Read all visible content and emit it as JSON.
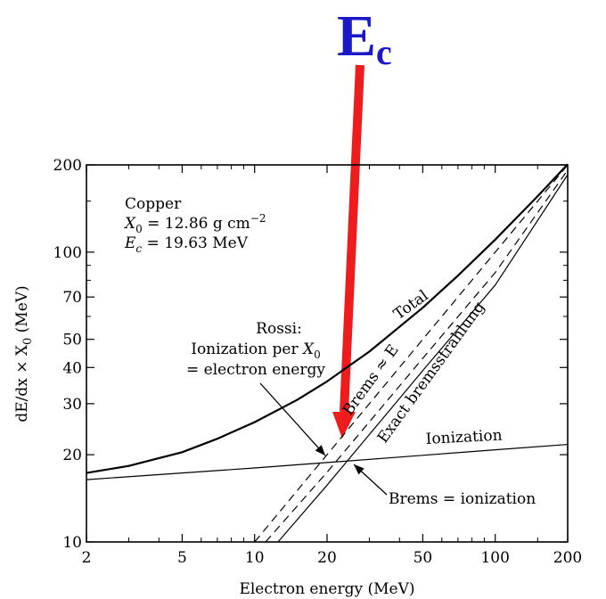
{
  "chart_data": {
    "type": "line",
    "title": "E",
    "title_subscript": "c",
    "title_color": "#1a18c8",
    "arrow_color": "#ee1c1c",
    "xlabel": "Electron energy (MeV)",
    "ylabel": "dE/dx × X",
    "ylabel_subscript": "0",
    "ylabel_suffix": " (MeV)",
    "x_scale": "log",
    "y_scale": "log",
    "xlim": [
      2,
      200
    ],
    "ylim": [
      10,
      200
    ],
    "x_ticks": [
      2,
      5,
      10,
      20,
      50,
      100,
      200
    ],
    "x_tick_labels": [
      "2",
      "5",
      "10",
      "20",
      "50",
      "100",
      "200"
    ],
    "y_ticks": [
      10,
      20,
      30,
      40,
      50,
      70,
      100,
      200
    ],
    "y_tick_labels": [
      "10",
      "20",
      "30",
      "40",
      "50",
      "70",
      "100",
      "200"
    ],
    "grid": false,
    "info_box": {
      "material": "Copper",
      "x0_symbol": "X",
      "x0_subscript": "0",
      "x0_value": " = 12.86 g cm",
      "x0_exponent": "−2",
      "ec_symbol": "E",
      "ec_subscript": "c",
      "ec_value": " = 19.63 MeV"
    },
    "series": [
      {
        "name": "Total",
        "style": "solid-thick",
        "x": [
          2,
          3,
          5,
          7,
          10,
          15,
          20,
          30,
          50,
          70,
          100,
          150,
          200
        ],
        "y": [
          17.3,
          18.3,
          20.4,
          22.7,
          25.9,
          30.9,
          35.8,
          45.4,
          64.3,
          83.0,
          110.5,
          156.0,
          201.0
        ]
      },
      {
        "name": "Ionization",
        "style": "solid-thin",
        "x": [
          2,
          5,
          10,
          20,
          50,
          100,
          200
        ],
        "y": [
          16.4,
          17.3,
          18.0,
          18.8,
          19.9,
          20.8,
          21.7
        ]
      },
      {
        "name": "Exact bremsstrahlung",
        "style": "solid-thin",
        "x": [
          12.5,
          20,
          50,
          100,
          200
        ],
        "y": [
          10.0,
          15.7,
          39.0,
          77.0,
          185.0
        ]
      },
      {
        "name": "Brems ≈ E",
        "style": "dashed",
        "x": [
          11.1,
          20,
          50,
          100,
          200
        ],
        "y": [
          10.0,
          17.4,
          43.0,
          85.0,
          192.0
        ]
      },
      {
        "name": "Rossi: Ionization per X0 = electron energy",
        "style": "dashed",
        "x": [
          10,
          20,
          50,
          100,
          200
        ],
        "y": [
          10.0,
          20.0,
          50.0,
          100.0,
          200.0
        ]
      }
    ],
    "annotations": {
      "total": "Total",
      "exact_brems": "Exact bremsstrahlung",
      "brems_approx": "Brems ≈ E",
      "ionization": "Ionization",
      "brems_eq_ion": "Brems = ionization",
      "rossi_line1": "Rossi:",
      "rossi_line2": "Ionization per ",
      "rossi_line2_symbol": "X",
      "rossi_line2_subscript": "0",
      "rossi_line3": "= electron energy"
    }
  }
}
